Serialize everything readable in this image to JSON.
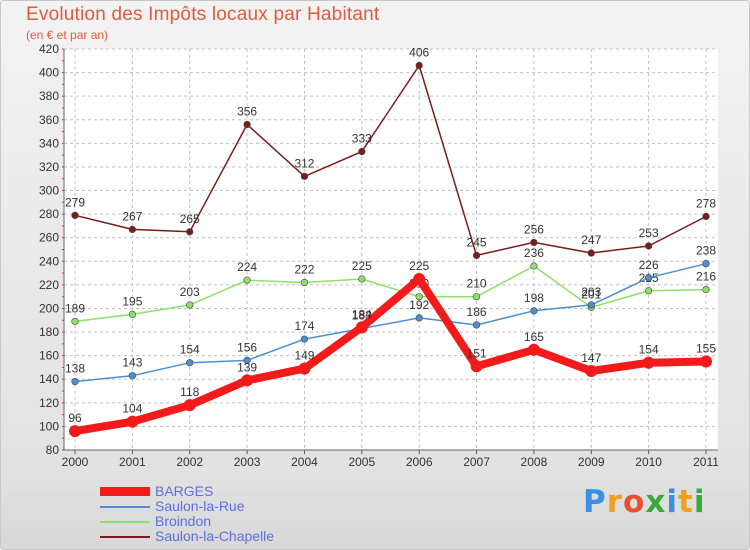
{
  "header": {
    "title": "Evolution des Impôts locaux par Habitant",
    "subtitle": "(en € et par an)"
  },
  "logo": {
    "letters": [
      "P",
      "r",
      "o",
      "x",
      "i",
      "t",
      "i"
    ]
  },
  "chart_data": {
    "type": "line",
    "title": "Evolution des Impôts locaux par Habitant",
    "subtitle": "(en € et par an)",
    "xlabel": "",
    "ylabel": "",
    "ylim": [
      80,
      420
    ],
    "yticks": [
      80,
      100,
      120,
      140,
      160,
      180,
      200,
      220,
      240,
      260,
      280,
      300,
      320,
      340,
      360,
      380,
      400,
      420
    ],
    "categories": [
      "2000",
      "2001",
      "2002",
      "2003",
      "2004",
      "2005",
      "2006",
      "2007",
      "2008",
      "2009",
      "2010",
      "2011"
    ],
    "grid": true,
    "legend_position": "bottom-left",
    "series": [
      {
        "name": "Saulon-la-Chapelle",
        "color": "#7a1c1c",
        "values": [
          279,
          267,
          265,
          356,
          312,
          333,
          406,
          245,
          256,
          247,
          253,
          278
        ]
      },
      {
        "name": "Broindon",
        "color": "#8ee06a",
        "values": [
          189,
          195,
          203,
          224,
          222,
          225,
          210,
          210,
          236,
          201,
          215,
          216
        ]
      },
      {
        "name": "Saulon-la-Rue",
        "color": "#4d8fce",
        "values": [
          138,
          143,
          154,
          156,
          174,
          183,
          192,
          186,
          198,
          203,
          226,
          238
        ]
      },
      {
        "name": "BARGES",
        "color": "#f21a1a",
        "values": [
          96,
          104,
          118,
          139,
          149,
          184,
          225,
          151,
          165,
          147,
          154,
          155
        ]
      }
    ],
    "legend": [
      {
        "name": "BARGES",
        "color": "#f21a1a"
      },
      {
        "name": "Saulon-la-Rue",
        "color": "#4d8fce"
      },
      {
        "name": "Broindon",
        "color": "#8ee06a"
      },
      {
        "name": "Saulon-la-Chapelle",
        "color": "#7a1c1c"
      }
    ]
  }
}
